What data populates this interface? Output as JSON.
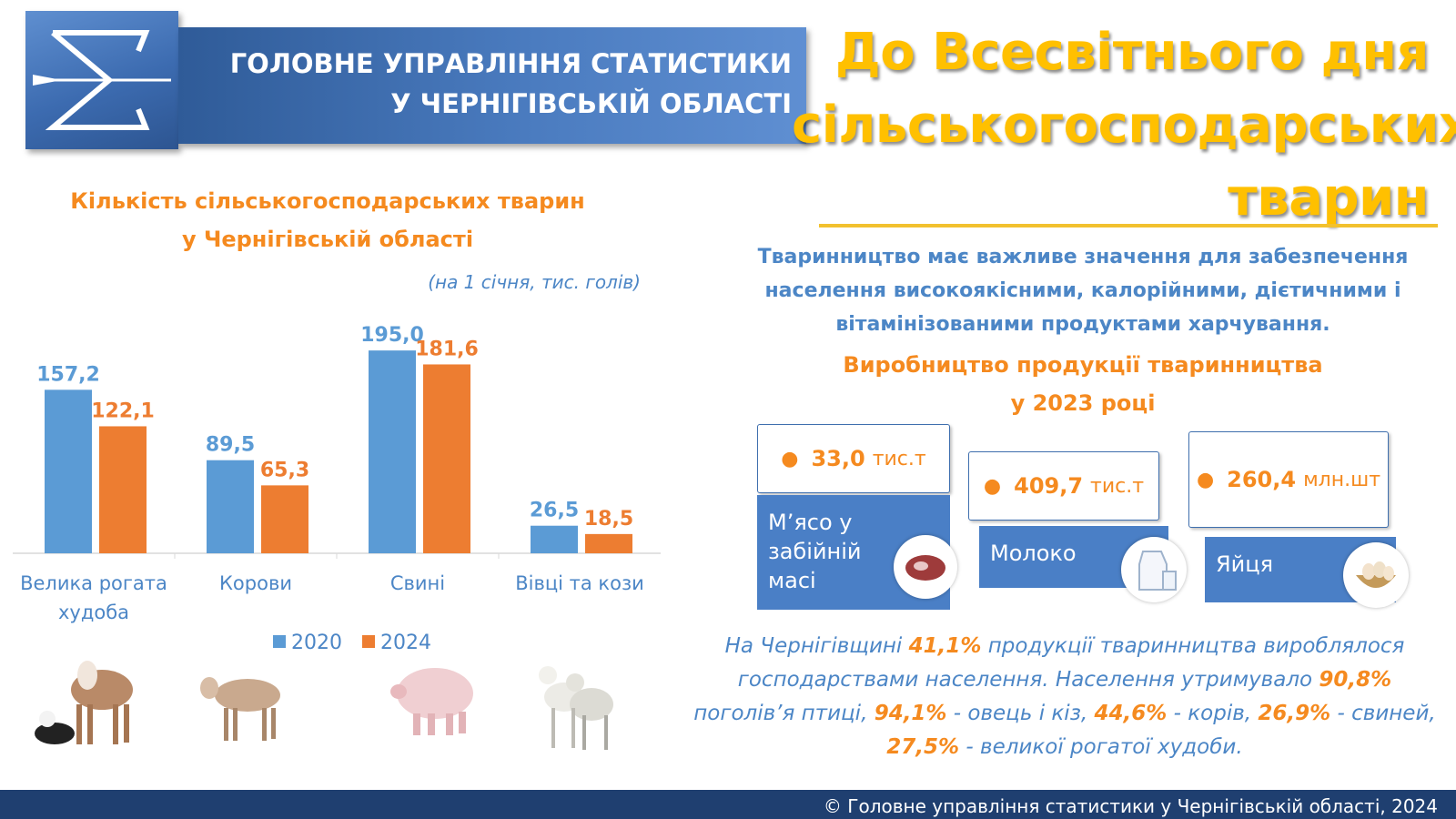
{
  "header": {
    "org_line1": "ГОЛОВНЕ УПРАВЛІННЯ СТАТИСТИКИ",
    "org_line2": "У ЧЕРНІГІВСЬКІЙ ОБЛАСТІ",
    "big_title_line1": "До Всесвітнього дня",
    "big_title_line2": "сільськогосподарських",
    "big_title_line3": "тварин"
  },
  "chart_data": {
    "type": "bar",
    "title_line1": "Кількість сільськогосподарських тварин",
    "title_line2": "у Чернігівській області",
    "subtitle": "(на 1 січня, тис. голів)",
    "categories": [
      "Велика рогата худоба",
      "Корови",
      "Свині",
      "Вівці та кози"
    ],
    "category_lines": [
      [
        "Велика рогата",
        "худоба"
      ],
      [
        "Корови"
      ],
      [
        "Свині"
      ],
      [
        "Вівці та кози"
      ]
    ],
    "series": [
      {
        "name": "2020",
        "values": [
          157.2,
          89.5,
          195.0,
          26.5
        ],
        "labels": [
          "157,2",
          "89,5",
          "195,0",
          "26,5"
        ],
        "color": "#5b9bd5"
      },
      {
        "name": "2024",
        "values": [
          122.1,
          65.3,
          181.6,
          18.5
        ],
        "labels": [
          "122,1",
          "65,3",
          "181,6",
          "18,5"
        ],
        "color": "#ed7d31"
      }
    ],
    "ylim": [
      0,
      210
    ],
    "grid": false,
    "legend_position": "bottom"
  },
  "intro": {
    "line1": "Тваринництво має важливе значення для забезпечення",
    "line2": "населення високоякісними, калорійними, дієтичними і",
    "line3": "вітамінізованими продуктами харчування."
  },
  "production": {
    "title_line1": "Виробництво продукції тваринництва",
    "title_line2": "у 2023 році",
    "items": [
      {
        "value": "33,0",
        "unit": "тис.т",
        "label_lines": [
          "М’ясо у",
          "забійній",
          "масі"
        ],
        "icon": "meat-icon"
      },
      {
        "value": "409,7",
        "unit": "тис.т",
        "label_lines": [
          "Молоко"
        ],
        "icon": "milk-icon"
      },
      {
        "value": "260,4",
        "unit": "млн.шт",
        "label_lines": [
          "Яйця"
        ],
        "icon": "eggs-icon"
      }
    ]
  },
  "summary": {
    "p1": "На Чернігівщині ",
    "v1": "41,1%",
    "p2": " продукції тваринництва вироблялося господарствами населення. Населення утримувало ",
    "v2": "90,8%",
    "p3": " поголів’я птиці, ",
    "v3": "94,1%",
    "p4": " - овець і кіз, ",
    "v4": "44,6%",
    "p5": " - корів, ",
    "v5": "26,9%",
    "p6": " - свиней, ",
    "v6": "27,5%",
    "p7": " - великої рогатої худоби."
  },
  "footer": {
    "text": "© Головне управління статистики у Чернігівській області, 2024"
  }
}
